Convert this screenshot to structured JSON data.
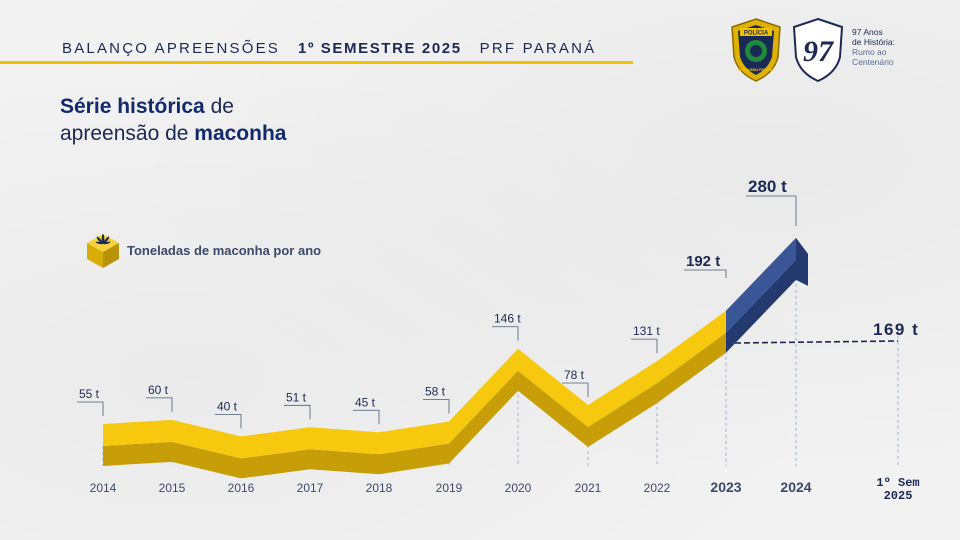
{
  "header": {
    "left": "BALANÇO APREENSÕES",
    "middle": "1º SEMESTRE 2025",
    "right": "PRF PARANÁ"
  },
  "title": {
    "line1_bold": "Série histórica",
    "line1_rest": " de",
    "line2_rest": "apreensão de ",
    "line2_bold": "maconha"
  },
  "logos": {
    "badge_top": "POLÍCIA",
    "badge_bottom": "RODOVIÁRIA FEDERAL",
    "anniv_number": "97",
    "anniv_line1": "97 Anos",
    "anniv_line2": "de História:",
    "anniv_line3": "Rumo ao",
    "anniv_line4": "Centenário"
  },
  "colors": {
    "navy": "#1b2a55",
    "yellow": "#f2c200",
    "yellow_dark": "#b8930a",
    "blue_series": "#34508f",
    "blue_series_dark": "#22386b"
  },
  "legend": {
    "label": "Toneladas de maconha por ano",
    "icon": "cannabis-leaf-icon"
  },
  "chart_data": {
    "type": "line",
    "categories": [
      "2014",
      "2015",
      "2016",
      "2017",
      "2018",
      "2019",
      "2020",
      "2021",
      "2022",
      "2023",
      "2024",
      "1º Sem 2025"
    ],
    "series": [
      {
        "name": "Toneladas de maconha por ano",
        "values": [
          55,
          60,
          40,
          51,
          45,
          58,
          146,
          78,
          131,
          192,
          280,
          169
        ],
        "labels": [
          "55 t",
          "60 t",
          "40 t",
          "51 t",
          "45 t",
          "58 t",
          "146 t",
          "78 t",
          "131 t",
          "192 t",
          "280 t",
          "169 t"
        ]
      }
    ],
    "highlighted_categories": [
      "2023",
      "2024"
    ],
    "unit": "t"
  }
}
